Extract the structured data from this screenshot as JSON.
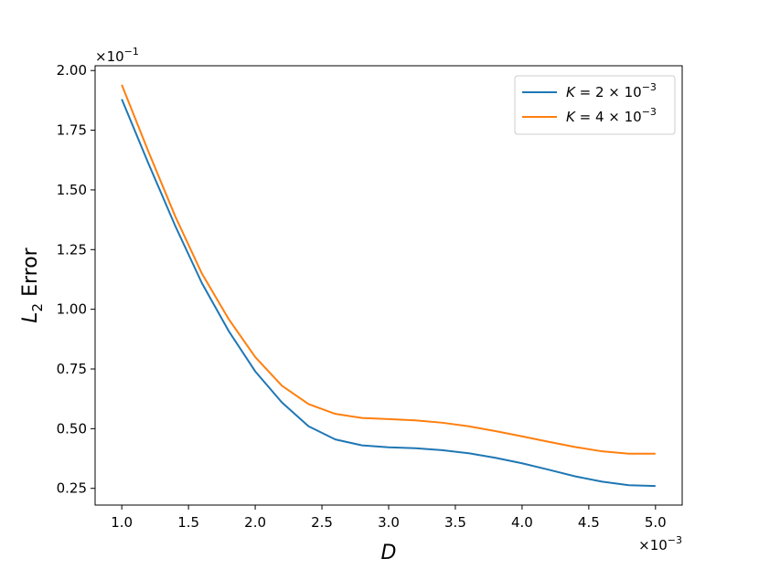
{
  "chart_data": {
    "type": "line",
    "x": [
      1.0,
      1.2,
      1.4,
      1.6,
      1.8,
      2.0,
      2.2,
      2.4,
      2.6,
      2.8,
      3.0,
      3.2,
      3.4,
      3.6,
      3.8,
      4.0,
      4.2,
      4.4,
      4.6,
      4.8,
      5.0
    ],
    "series": [
      {
        "name_parts": [
          "K",
          " = 2 × 10",
          "−3"
        ],
        "color": "#1f77b4",
        "values": [
          1.88,
          1.61,
          1.35,
          1.11,
          0.91,
          0.74,
          0.61,
          0.51,
          0.455,
          0.43,
          0.422,
          0.418,
          0.41,
          0.397,
          0.378,
          0.355,
          0.328,
          0.3,
          0.278,
          0.263,
          0.26
        ]
      },
      {
        "name_parts": [
          "K",
          " = 4 × 10",
          "−3"
        ],
        "color": "#ff7f0e",
        "values": [
          1.94,
          1.66,
          1.39,
          1.15,
          0.96,
          0.8,
          0.68,
          0.603,
          0.562,
          0.545,
          0.54,
          0.535,
          0.525,
          0.51,
          0.49,
          0.468,
          0.445,
          0.423,
          0.405,
          0.395,
          0.395
        ]
      }
    ],
    "xlim": [
      0.8,
      5.2
    ],
    "ylim": [
      0.18,
      2.02
    ],
    "xticks": [
      1.0,
      1.5,
      2.0,
      2.5,
      3.0,
      3.5,
      4.0,
      4.5,
      5.0
    ],
    "xtick_labels": [
      "1.0",
      "1.5",
      "2.0",
      "2.5",
      "3.0",
      "3.5",
      "4.0",
      "4.5",
      "5.0"
    ],
    "yticks": [
      0.25,
      0.5,
      0.75,
      1.0,
      1.25,
      1.5,
      1.75,
      2.0
    ],
    "ytick_labels": [
      "0.25",
      "0.50",
      "0.75",
      "1.00",
      "1.25",
      "1.50",
      "1.75",
      "2.00"
    ],
    "xlabel": "D",
    "ylabel_main": "L",
    "ylabel_sub": "2",
    "ylabel_rest": " Error",
    "x_multiplier": {
      "base": "×10",
      "exp": "−3"
    },
    "y_multiplier": {
      "base": "×10",
      "exp": "−1"
    },
    "legend_position": "top-right",
    "grid": false
  }
}
